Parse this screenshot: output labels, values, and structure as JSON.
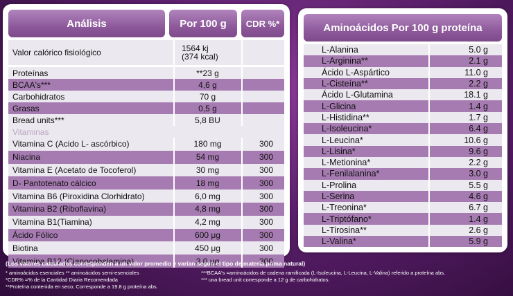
{
  "left_table": {
    "headers": {
      "analysis": "Análisis",
      "per100": "Por 100 g",
      "cdr": "CDR %*"
    },
    "calorie": {
      "name": "Valor calórico fisiológico",
      "value_line1": "1564 kj",
      "value_line2": "(374 kcal)"
    },
    "rows": [
      {
        "name": "Proteínas",
        "value": "**23 g",
        "cdr": ""
      },
      {
        "name": "BCAA's***",
        "value": "4,6 g",
        "cdr": ""
      },
      {
        "name": "Carbohidratos",
        "value": "70 g",
        "cdr": ""
      },
      {
        "name": "Grasas",
        "value": "0,5 g",
        "cdr": ""
      },
      {
        "name": "Bread units***",
        "value": "5,8 BU",
        "cdr": ""
      }
    ],
    "vitamins_label": "Vitaminas",
    "vitamins": [
      {
        "name": "Vitamina C (Acido L- ascórbico)",
        "value": "180 mg",
        "cdr": "300"
      },
      {
        "name": "Niacina",
        "value": "54 mg",
        "cdr": "300"
      },
      {
        "name": "Vitamina E (Acetato de Tocoferol)",
        "value": "30 mg",
        "cdr": "300"
      },
      {
        "name": "D- Pantotenato cálcico",
        "value": "18 mg",
        "cdr": "300"
      },
      {
        "name": "Vitamina B6 (Piroxidina Clorhidrato)",
        "value": "6,0 mg",
        "cdr": "300"
      },
      {
        "name": "Vitamina B2 (Riboflavina)",
        "value": "4,8 mg",
        "cdr": "300"
      },
      {
        "name": "Vitamina B1(Tiamina)",
        "value": "4,2 mg",
        "cdr": "300"
      },
      {
        "name": "Ácido Fólico",
        "value": "600 μg",
        "cdr": "300"
      },
      {
        "name": "Biotina",
        "value": "450 μg",
        "cdr": "300"
      },
      {
        "name": "Vitamina B12 (Cianocobalamina)",
        "value": "3,0 μg",
        "cdr": "300"
      }
    ]
  },
  "right_table": {
    "header": "Aminoácidos Por 100 g proteína",
    "rows": [
      {
        "name": "L-Alanina",
        "value": "5.0 g"
      },
      {
        "name": "L-Arginina**",
        "value": "2.1 g"
      },
      {
        "name": "Ácido L-Aspártico",
        "value": "11.0 g"
      },
      {
        "name": "L-Cisteína**",
        "value": "2.2 g"
      },
      {
        "name": "Ácido L-Glutamina",
        "value": "18.1 g"
      },
      {
        "name": "L-Glicina",
        "value": "1.4 g"
      },
      {
        "name": "L-Histidina**",
        "value": "1.7 g"
      },
      {
        "name": "L-Isoleucina*",
        "value": "6.4 g"
      },
      {
        "name": "L-Leucina*",
        "value": "10.6 g"
      },
      {
        "name": "L-Lisina*",
        "value": "9.6 g"
      },
      {
        "name": "L-Metionina*",
        "value": "2.2 g"
      },
      {
        "name": "L-Fenilalanina*",
        "value": "3.0 g"
      },
      {
        "name": "L-Prolina",
        "value": "5.5 g"
      },
      {
        "name": "L-Serina",
        "value": "4.6 g"
      },
      {
        "name": "L-Treonina*",
        "value": "6.7 g"
      },
      {
        "name": "L-Triptófano*",
        "value": "1.4 g"
      },
      {
        "name": "L-Tirosina**",
        "value": "2.6 g"
      },
      {
        "name": "L-Valina*",
        "value": "5.9 g"
      }
    ]
  },
  "notes": {
    "main": "(Los valores calculados corresponden a un valor promedio y varían según el tipo de materia prima natural)",
    "left": [
      "* aminoácidos esenciales   ** aminoácidos semi-esenciales",
      "*CDR% =% de la Cantidad Diaria Recomendada",
      "**Proteína contenida en seco; Corresponde a 19.8 g proteína abs."
    ],
    "right": [
      "***BCAA's =aminoácidos de cadena ramificada (L-Isoleucina, L-Leucina, L-Valina)  referido a proteína abs.",
      "*** una bread unit corresponde a 12 g de carbohidratos."
    ]
  }
}
